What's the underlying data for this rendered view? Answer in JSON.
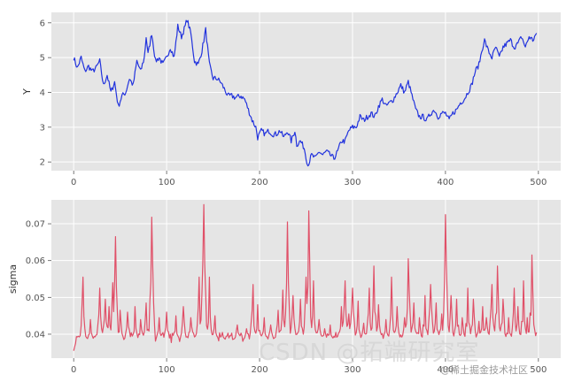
{
  "chart_data": [
    {
      "type": "line",
      "ylabel": "Y",
      "xlabel": "",
      "xlim": [
        -24,
        524
      ],
      "ylim": [
        1.75,
        6.3
      ],
      "x_ticks": [
        0,
        100,
        200,
        300,
        400,
        500
      ],
      "y_ticks": [
        2,
        3,
        4,
        5,
        6
      ],
      "grid": true,
      "color": "#2233dd",
      "series": [
        {
          "anchors": [
            [
              0,
              5.0
            ],
            [
              4,
              4.7
            ],
            [
              8,
              5.0
            ],
            [
              12,
              4.6
            ],
            [
              16,
              4.75
            ],
            [
              20,
              4.6
            ],
            [
              24,
              4.7
            ],
            [
              28,
              4.9
            ],
            [
              32,
              4.2
            ],
            [
              36,
              4.5
            ],
            [
              40,
              4.0
            ],
            [
              44,
              4.3
            ],
            [
              48,
              3.6
            ],
            [
              52,
              3.9
            ],
            [
              56,
              4.0
            ],
            [
              60,
              4.4
            ],
            [
              64,
              4.2
            ],
            [
              68,
              4.9
            ],
            [
              72,
              4.6
            ],
            [
              76,
              5.0
            ],
            [
              78,
              5.6
            ],
            [
              80,
              5.1
            ],
            [
              84,
              5.7
            ],
            [
              88,
              4.9
            ],
            [
              92,
              5.0
            ],
            [
              96,
              4.8
            ],
            [
              100,
              5.0
            ],
            [
              104,
              5.3
            ],
            [
              108,
              5.0
            ],
            [
              112,
              5.9
            ],
            [
              116,
              5.6
            ],
            [
              120,
              5.9
            ],
            [
              122,
              6.1
            ],
            [
              126,
              5.7
            ],
            [
              130,
              4.9
            ],
            [
              134,
              4.8
            ],
            [
              138,
              5.2
            ],
            [
              142,
              5.8
            ],
            [
              146,
              4.8
            ],
            [
              150,
              4.4
            ],
            [
              154,
              4.4
            ],
            [
              158,
              4.3
            ],
            [
              162,
              4.1
            ],
            [
              166,
              3.9
            ],
            [
              170,
              3.9
            ],
            [
              174,
              3.85
            ],
            [
              180,
              3.9
            ],
            [
              184,
              3.8
            ],
            [
              188,
              3.5
            ],
            [
              192,
              3.2
            ],
            [
              196,
              3.0
            ],
            [
              198,
              2.7
            ],
            [
              202,
              2.9
            ],
            [
              206,
              2.8
            ],
            [
              210,
              2.9
            ],
            [
              214,
              2.8
            ],
            [
              218,
              2.8
            ],
            [
              222,
              2.9
            ],
            [
              226,
              2.7
            ],
            [
              230,
              2.9
            ],
            [
              234,
              2.6
            ],
            [
              238,
              2.9
            ],
            [
              240,
              2.5
            ],
            [
              244,
              2.6
            ],
            [
              248,
              2.4
            ],
            [
              252,
              1.9
            ],
            [
              256,
              2.2
            ],
            [
              260,
              2.1
            ],
            [
              264,
              2.3
            ],
            [
              268,
              2.2
            ],
            [
              272,
              2.3
            ],
            [
              276,
              2.2
            ],
            [
              280,
              2.1
            ],
            [
              284,
              2.3
            ],
            [
              288,
              2.6
            ],
            [
              292,
              2.6
            ],
            [
              296,
              2.9
            ],
            [
              300,
              3.0
            ],
            [
              304,
              3.0
            ],
            [
              308,
              3.3
            ],
            [
              312,
              3.2
            ],
            [
              316,
              3.3
            ],
            [
              320,
              3.4
            ],
            [
              324,
              3.3
            ],
            [
              328,
              3.6
            ],
            [
              332,
              3.8
            ],
            [
              336,
              3.6
            ],
            [
              340,
              3.7
            ],
            [
              344,
              3.8
            ],
            [
              348,
              4.0
            ],
            [
              352,
              4.2
            ],
            [
              356,
              4.0
            ],
            [
              360,
              4.3
            ],
            [
              364,
              3.9
            ],
            [
              368,
              3.5
            ],
            [
              372,
              3.3
            ],
            [
              376,
              3.3
            ],
            [
              380,
              3.2
            ],
            [
              384,
              3.4
            ],
            [
              388,
              3.5
            ],
            [
              392,
              3.3
            ],
            [
              396,
              3.4
            ],
            [
              400,
              3.4
            ],
            [
              404,
              3.2
            ],
            [
              408,
              3.4
            ],
            [
              412,
              3.5
            ],
            [
              416,
              3.7
            ],
            [
              420,
              3.8
            ],
            [
              424,
              4.0
            ],
            [
              428,
              4.2
            ],
            [
              432,
              4.6
            ],
            [
              436,
              4.8
            ],
            [
              440,
              5.3
            ],
            [
              442,
              5.5
            ],
            [
              446,
              5.2
            ],
            [
              450,
              5.0
            ],
            [
              454,
              5.3
            ],
            [
              458,
              5.0
            ],
            [
              462,
              5.3
            ],
            [
              466,
              5.4
            ],
            [
              470,
              5.5
            ],
            [
              474,
              5.3
            ],
            [
              478,
              5.4
            ],
            [
              482,
              5.6
            ],
            [
              486,
              5.3
            ],
            [
              490,
              5.6
            ],
            [
              494,
              5.5
            ],
            [
              498,
              5.7
            ]
          ]
        }
      ]
    },
    {
      "type": "line",
      "ylabel": "sigma",
      "xlabel": "",
      "xlim": [
        -24,
        524
      ],
      "ylim": [
        0.0335,
        0.0765
      ],
      "x_ticks": [
        0,
        100,
        200,
        300,
        400,
        500
      ],
      "y_ticks": [
        0.04,
        0.05,
        0.06,
        0.07
      ],
      "grid": true,
      "color": "#e05068",
      "series": [
        {
          "baseline": 0.0385,
          "spikes": [
            [
              10,
              0.0555
            ],
            [
              18,
              0.044
            ],
            [
              28,
              0.0525
            ],
            [
              34,
              0.0495
            ],
            [
              38,
              0.0475
            ],
            [
              42,
              0.054
            ],
            [
              45,
              0.0665
            ],
            [
              50,
              0.0465
            ],
            [
              58,
              0.046
            ],
            [
              66,
              0.0475
            ],
            [
              72,
              0.044
            ],
            [
              78,
              0.0485
            ],
            [
              84,
              0.0718
            ],
            [
              92,
              0.0445
            ],
            [
              100,
              0.046
            ],
            [
              110,
              0.045
            ],
            [
              118,
              0.0475
            ],
            [
              126,
              0.0445
            ],
            [
              135,
              0.0555
            ],
            [
              140,
              0.0752
            ],
            [
              146,
              0.0555
            ],
            [
              152,
              0.045
            ],
            [
              160,
              0.0405
            ],
            [
              168,
              0.0395
            ],
            [
              176,
              0.0425
            ],
            [
              186,
              0.0415
            ],
            [
              193,
              0.0535
            ],
            [
              198,
              0.048
            ],
            [
              205,
              0.0445
            ],
            [
              212,
              0.0425
            ],
            [
              220,
              0.0465
            ],
            [
              225,
              0.052
            ],
            [
              230,
              0.0705
            ],
            [
              236,
              0.0505
            ],
            [
              244,
              0.0495
            ],
            [
              250,
              0.0555
            ],
            [
              253,
              0.0735
            ],
            [
              258,
              0.0545
            ],
            [
              264,
              0.044
            ],
            [
              270,
              0.0415
            ],
            [
              276,
              0.0425
            ],
            [
              282,
              0.0405
            ],
            [
              288,
              0.0475
            ],
            [
              292,
              0.0545
            ],
            [
              296,
              0.0455
            ],
            [
              300,
              0.0525
            ],
            [
              306,
              0.049
            ],
            [
              312,
              0.043
            ],
            [
              318,
              0.0525
            ],
            [
              323,
              0.0585
            ],
            [
              328,
              0.048
            ],
            [
              336,
              0.044
            ],
            [
              342,
              0.0555
            ],
            [
              348,
              0.0475
            ],
            [
              356,
              0.0445
            ],
            [
              360,
              0.0605
            ],
            [
              366,
              0.0485
            ],
            [
              372,
              0.0445
            ],
            [
              378,
              0.0505
            ],
            [
              384,
              0.0535
            ],
            [
              390,
              0.0485
            ],
            [
              396,
              0.0455
            ],
            [
              400,
              0.0725
            ],
            [
              406,
              0.0505
            ],
            [
              412,
              0.0495
            ],
            [
              418,
              0.0445
            ],
            [
              424,
              0.0525
            ],
            [
              430,
              0.0495
            ],
            [
              436,
              0.0435
            ],
            [
              440,
              0.0475
            ],
            [
              444,
              0.0445
            ],
            [
              450,
              0.0535
            ],
            [
              456,
              0.0585
            ],
            [
              462,
              0.0495
            ],
            [
              468,
              0.0445
            ],
            [
              474,
              0.0525
            ],
            [
              478,
              0.0475
            ],
            [
              484,
              0.0545
            ],
            [
              488,
              0.0445
            ],
            [
              493,
              0.0615
            ],
            [
              498,
              0.0405
            ]
          ]
        }
      ]
    }
  ],
  "watermark": {
    "csdn": "CSDN @拓端研究室",
    "juejin": "@稀土掘金技术社区"
  }
}
